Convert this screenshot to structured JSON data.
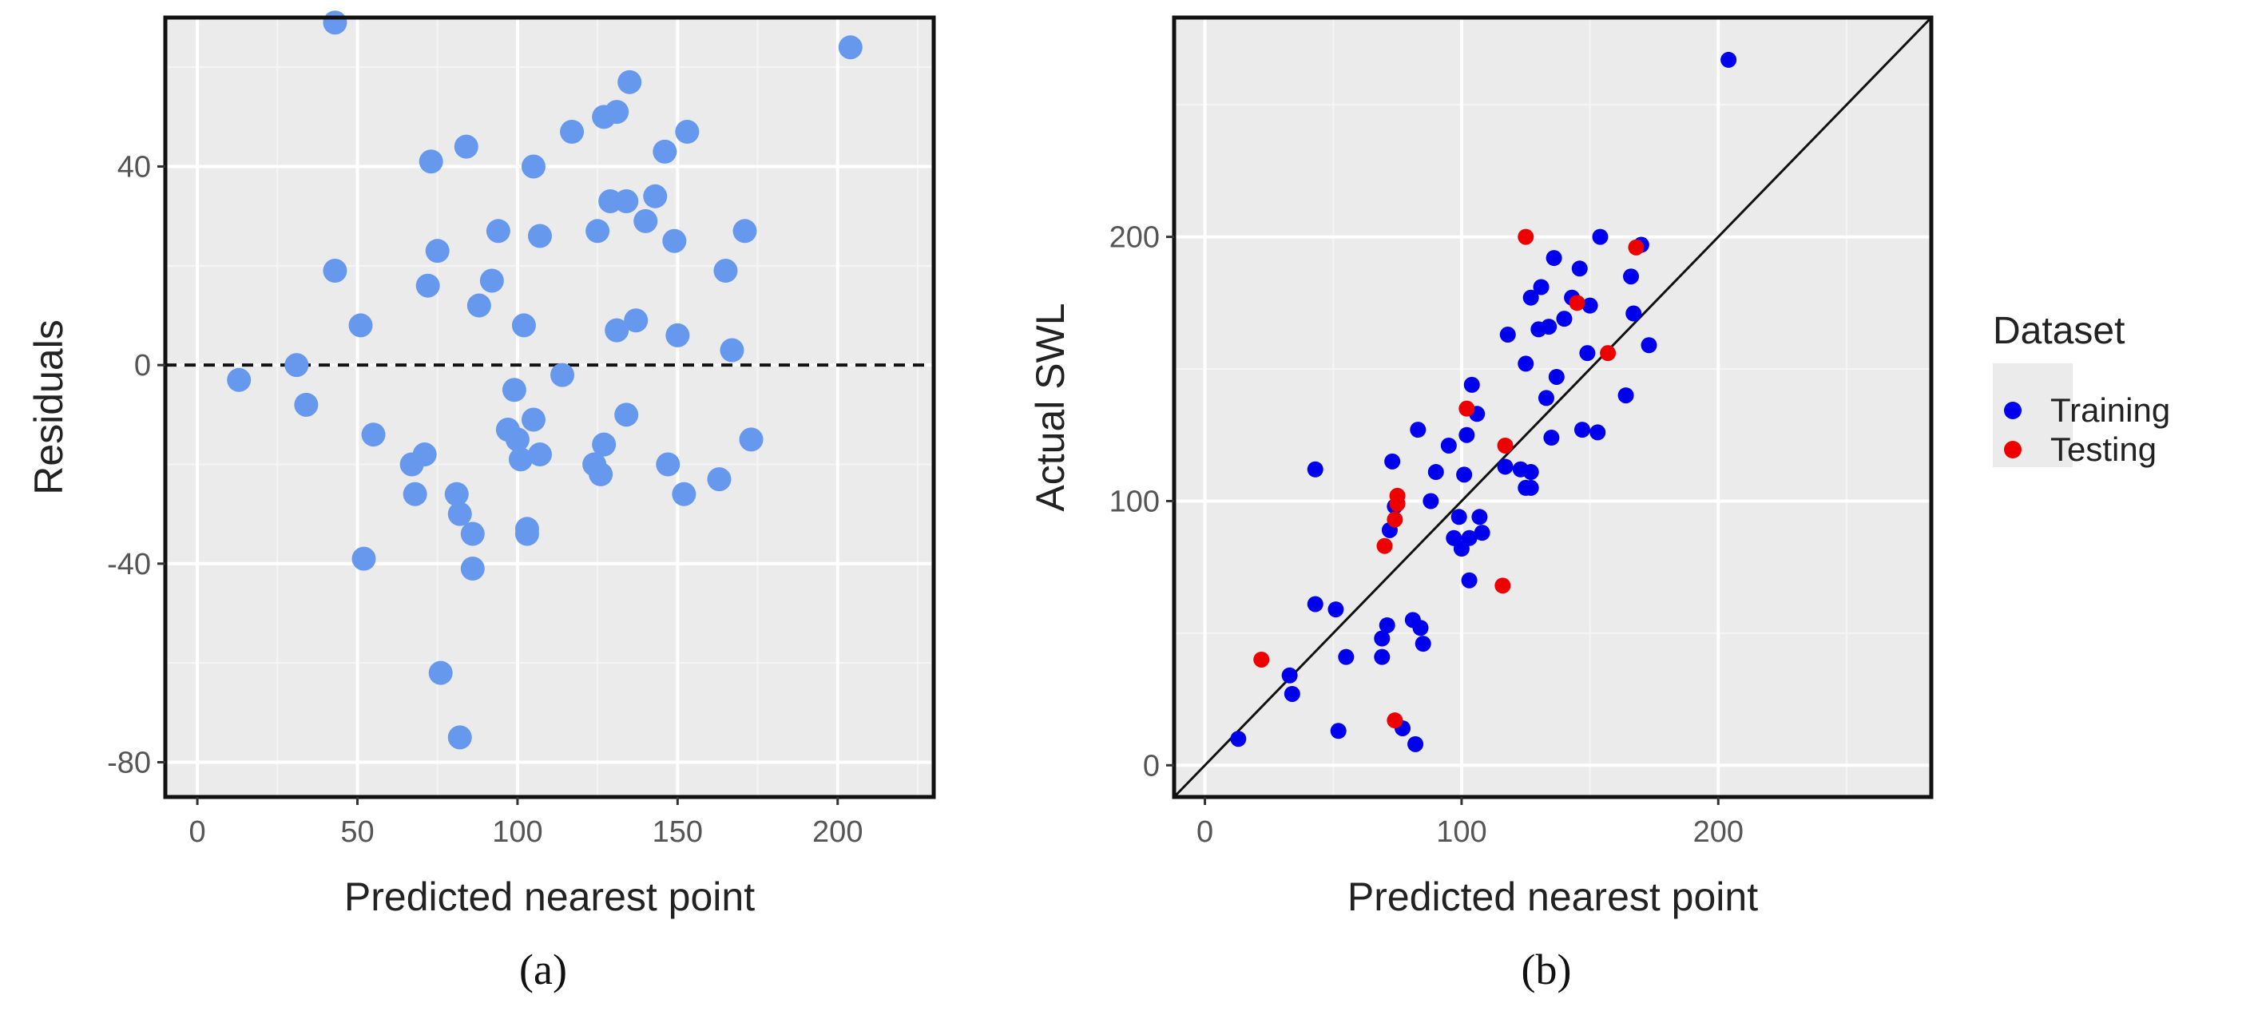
{
  "chart_data": [
    {
      "panel": "(a)",
      "type": "scatter",
      "xlabel": "Predicted nearest point",
      "ylabel": "Residuals",
      "xlim": [
        -10,
        230
      ],
      "ylim": [
        -87,
        70
      ],
      "x_ticks": [
        "0",
        "50",
        "100",
        "150",
        "200"
      ],
      "y_ticks": [
        "-80",
        "-40",
        "0",
        "40"
      ],
      "grid": true,
      "reference_line": {
        "type": "horizontal",
        "y": 0,
        "style": "dashed"
      },
      "color": "#6699ee",
      "points": [
        [
          13,
          -3
        ],
        [
          31,
          0
        ],
        [
          34,
          -8
        ],
        [
          43,
          69
        ],
        [
          43,
          19
        ],
        [
          51,
          8
        ],
        [
          52,
          -39
        ],
        [
          55,
          -14
        ],
        [
          67,
          -20
        ],
        [
          68,
          -26
        ],
        [
          71,
          -18
        ],
        [
          72,
          16
        ],
        [
          73,
          41
        ],
        [
          75,
          23
        ],
        [
          76,
          -62
        ],
        [
          81,
          -26
        ],
        [
          82,
          -30
        ],
        [
          82,
          -75
        ],
        [
          84,
          44
        ],
        [
          86,
          -34
        ],
        [
          86,
          -41
        ],
        [
          88,
          12
        ],
        [
          92,
          17
        ],
        [
          94,
          27
        ],
        [
          97,
          -13
        ],
        [
          99,
          -5
        ],
        [
          100,
          -15
        ],
        [
          101,
          -19
        ],
        [
          102,
          8
        ],
        [
          103,
          -34
        ],
        [
          103,
          -33
        ],
        [
          105,
          40
        ],
        [
          105,
          -11
        ],
        [
          107,
          26
        ],
        [
          107,
          -18
        ],
        [
          114,
          -2
        ],
        [
          117,
          47
        ],
        [
          124,
          -20
        ],
        [
          125,
          27
        ],
        [
          126,
          -22
        ],
        [
          127,
          -16
        ],
        [
          127,
          50
        ],
        [
          129,
          33
        ],
        [
          131,
          51
        ],
        [
          131,
          7
        ],
        [
          134,
          33
        ],
        [
          134,
          -10
        ],
        [
          135,
          57
        ],
        [
          137,
          9
        ],
        [
          140,
          29
        ],
        [
          143,
          34
        ],
        [
          146,
          43
        ],
        [
          147,
          -20
        ],
        [
          149,
          25
        ],
        [
          150,
          6
        ],
        [
          152,
          -26
        ],
        [
          153,
          47
        ],
        [
          163,
          -23
        ],
        [
          165,
          19
        ],
        [
          167,
          3
        ],
        [
          171,
          27
        ],
        [
          173,
          -15
        ],
        [
          204,
          64
        ]
      ]
    },
    {
      "panel": "(b)",
      "type": "scatter",
      "xlabel": "Predicted nearest point",
      "ylabel": "Actual SWL",
      "xlim": [
        -12,
        283
      ],
      "ylim": [
        -12,
        283
      ],
      "x_ticks": [
        "0",
        "100",
        "200"
      ],
      "y_ticks": [
        "0",
        "100",
        "200"
      ],
      "grid": true,
      "reference_line": {
        "type": "identity",
        "style": "solid"
      },
      "legend": {
        "title": "Dataset",
        "position": "right",
        "entries": [
          {
            "label": "Training",
            "color": "#0000ee"
          },
          {
            "label": "Testing",
            "color": "#ee0000"
          }
        ]
      },
      "series": [
        {
          "name": "Training",
          "color": "#0000ee",
          "points": [
            [
              13,
              10
            ],
            [
              33,
              34
            ],
            [
              34,
              27
            ],
            [
              43,
              112
            ],
            [
              43,
              61
            ],
            [
              51,
              59
            ],
            [
              52,
              13
            ],
            [
              55,
              41
            ],
            [
              69,
              41
            ],
            [
              69,
              48
            ],
            [
              71,
              53
            ],
            [
              72,
              89
            ],
            [
              73,
              115
            ],
            [
              74,
              98
            ],
            [
              77,
              14
            ],
            [
              81,
              55
            ],
            [
              82,
              8
            ],
            [
              83,
              127
            ],
            [
              84,
              52
            ],
            [
              85,
              46
            ],
            [
              88,
              100
            ],
            [
              90,
              111
            ],
            [
              95,
              121
            ],
            [
              97,
              86
            ],
            [
              99,
              94
            ],
            [
              100,
              82
            ],
            [
              101,
              110
            ],
            [
              102,
              125
            ],
            [
              103,
              70
            ],
            [
              103,
              86
            ],
            [
              104,
              144
            ],
            [
              106,
              133
            ],
            [
              107,
              94
            ],
            [
              108,
              88
            ],
            [
              117,
              113
            ],
            [
              118,
              163
            ],
            [
              123,
              112
            ],
            [
              125,
              105
            ],
            [
              125,
              152
            ],
            [
              127,
              177
            ],
            [
              127,
              111
            ],
            [
              127,
              105
            ],
            [
              130,
              165
            ],
            [
              131,
              181
            ],
            [
              133,
              139
            ],
            [
              134,
              166
            ],
            [
              135,
              124
            ],
            [
              136,
              192
            ],
            [
              137,
              147
            ],
            [
              140,
              169
            ],
            [
              143,
              177
            ],
            [
              146,
              188
            ],
            [
              147,
              127
            ],
            [
              149,
              156
            ],
            [
              150,
              174
            ],
            [
              153,
              126
            ],
            [
              154,
              200
            ],
            [
              164,
              140
            ],
            [
              166,
              185
            ],
            [
              167,
              171
            ],
            [
              170,
              197
            ],
            [
              173,
              159
            ],
            [
              204,
              267
            ]
          ]
        },
        {
          "name": "Testing",
          "color": "#ee0000",
          "points": [
            [
              22,
              40
            ],
            [
              70,
              83
            ],
            [
              74,
              93
            ],
            [
              74,
              17
            ],
            [
              75,
              99
            ],
            [
              75,
              102
            ],
            [
              102,
              135
            ],
            [
              116,
              68
            ],
            [
              117,
              121
            ],
            [
              125,
              200
            ],
            [
              157,
              156
            ],
            [
              168,
              196
            ],
            [
              145,
              175
            ]
          ]
        }
      ]
    }
  ],
  "captions": [
    "(a)",
    "(b)"
  ],
  "colors": {
    "panel_bg": "#ebebeb",
    "grid_major": "#ffffff",
    "grid_minor": "#f5f5f5",
    "legend_bg": "#ebebeb"
  }
}
